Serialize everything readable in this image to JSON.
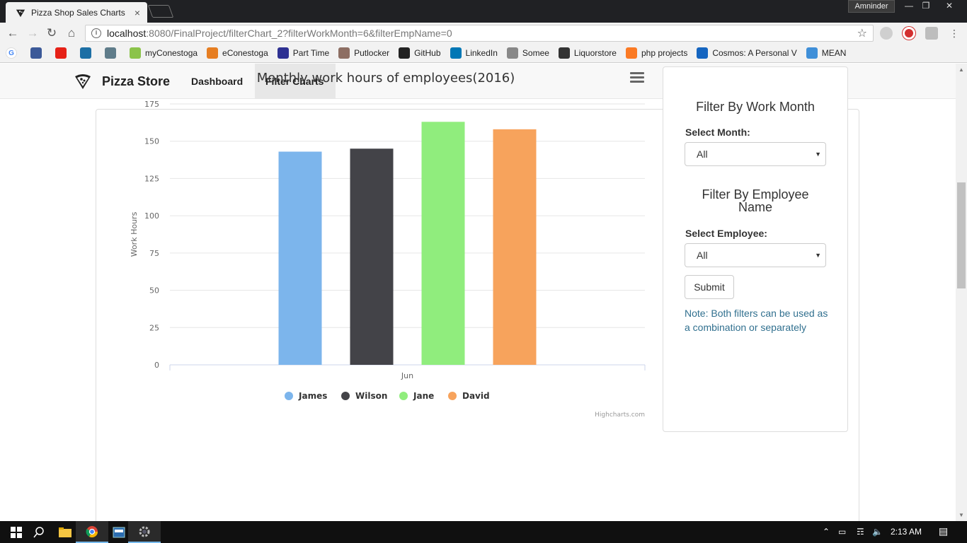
{
  "browser": {
    "tab_title": "Pizza Shop Sales Charts",
    "tab_close": "×",
    "user": "Amninder",
    "url_host": "localhost",
    "url_path": ":8080/FinalProject/filterChart_2?filterWorkMonth=6&filterEmpName=0"
  },
  "bookmarks": [
    {
      "label": "",
      "icon": "google-icon",
      "color": "#ffffff"
    },
    {
      "label": "",
      "icon": "facebook-icon",
      "color": "#3b5998"
    },
    {
      "label": "",
      "icon": "youtube-icon",
      "color": "#e62117"
    },
    {
      "label": "",
      "icon": "fr-icon",
      "color": "#1d6fa5"
    },
    {
      "label": "",
      "icon": "sync-icon",
      "color": "#5f7c8a"
    },
    {
      "label": "myConestoga",
      "icon": "myconestoga-icon",
      "color": "#8bc34a"
    },
    {
      "label": "eConestoga",
      "icon": "econestoga-icon",
      "color": "#e67e22"
    },
    {
      "label": "Part Time",
      "icon": "parttime-icon",
      "color": "#2e3192"
    },
    {
      "label": "Putlocker",
      "icon": "putlocker-icon",
      "color": "#8d6e63"
    },
    {
      "label": "GitHub",
      "icon": "github-icon",
      "color": "#222222"
    },
    {
      "label": "LinkedIn",
      "icon": "linkedin-icon",
      "color": "#0077b5"
    },
    {
      "label": "Somee",
      "icon": "page-icon",
      "color": "#888888"
    },
    {
      "label": "Liquorstore",
      "icon": "bottle-icon",
      "color": "#333333"
    },
    {
      "label": "php projects",
      "icon": "xampp-icon",
      "color": "#fb7a24"
    },
    {
      "label": "Cosmos: A Personal V",
      "icon": "dictionary-icon",
      "color": "#1565c0"
    },
    {
      "label": "MEAN",
      "icon": "mean-icon",
      "color": "#3f8fd8"
    }
  ],
  "nav": {
    "brand": "Pizza Store",
    "links": [
      "Dashboard",
      "Filter Charts"
    ]
  },
  "chart_data": {
    "type": "bar",
    "title": "Monthly work hours of employees(2016)",
    "xlabel": "",
    "ylabel": "Work Hours",
    "categories": [
      "Jun"
    ],
    "ylim": [
      0,
      175
    ],
    "yticks": [
      0,
      25,
      50,
      75,
      100,
      125,
      150,
      175
    ],
    "grid": true,
    "legend_placement": "bottom-center",
    "series": [
      {
        "name": "James",
        "values": [
          143
        ],
        "color": "#7cb5ec"
      },
      {
        "name": "Wilson",
        "values": [
          145
        ],
        "color": "#434348"
      },
      {
        "name": "Jane",
        "values": [
          163
        ],
        "color": "#90ed7d"
      },
      {
        "name": "David",
        "values": [
          158
        ],
        "color": "#f7a35c"
      }
    ],
    "credits": "Highcharts.com"
  },
  "filters": {
    "month_heading": "Filter By Work Month",
    "month_label": "Select Month:",
    "month_value": "All",
    "employee_heading": "Filter By Employee Name",
    "employee_label": "Select Employee:",
    "employee_value": "All",
    "submit_label": "Submit",
    "note": "Note: Both filters can be used as a combination or separately"
  },
  "taskbar": {
    "clock": "2:13 AM"
  }
}
